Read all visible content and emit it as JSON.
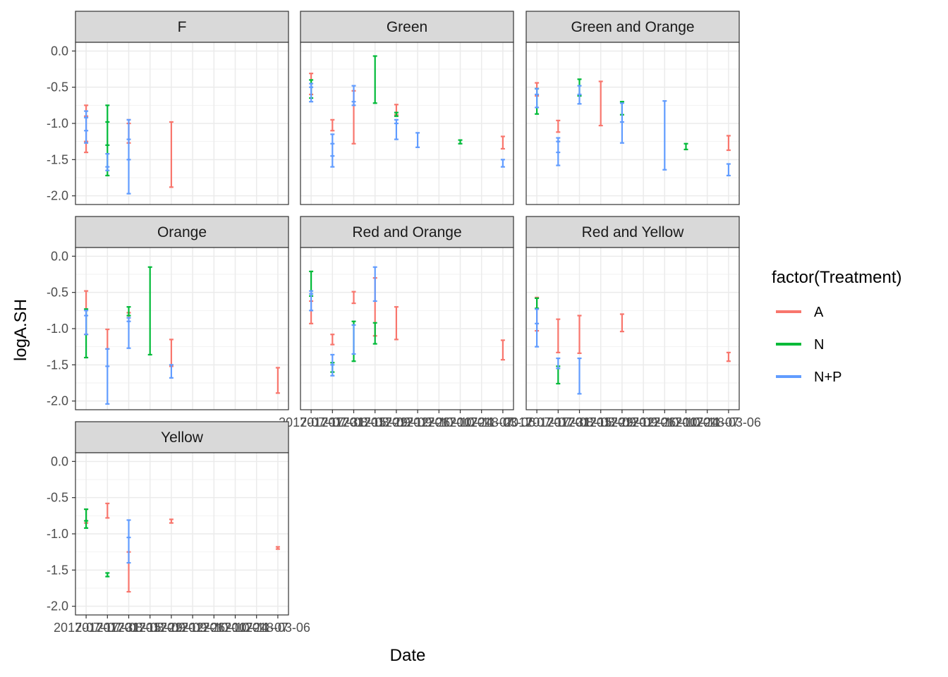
{
  "chart_data": {
    "type": "errorbar",
    "xlabel": "Date",
    "ylabel": "logA.SH",
    "ylim": [
      -2.12,
      0.12
    ],
    "y_ticks": [
      0.0,
      -0.5,
      -1.0,
      -1.5,
      -2.0
    ],
    "y_tick_labels": [
      "0.0",
      "-0.5",
      "-1.0",
      "-1.5",
      "-2.0"
    ],
    "x_categories": [
      "2017-07-17",
      "2017-07-31",
      "2017-08-15",
      "2017-08-29",
      "2017-09-12",
      "2017-09-26",
      "2017-10-10",
      "2017-10-24",
      "2017-11-07",
      "2018-03-06"
    ],
    "x_tick_labels": [
      "2017-07-17",
      "2017-07-31",
      "2017-08-15",
      "2017-08-29",
      "2017-09-12",
      "2017-09-26",
      "2017-10-10",
      "2017-10-24",
      "2017-11-07",
      "2018-03-06"
    ],
    "legend": {
      "title": "factor(Treatment)",
      "position": "right",
      "entries": [
        {
          "name": "A",
          "color": "#F8766D"
        },
        {
          "name": "N",
          "color": "#00BA38"
        },
        {
          "name": "N+P",
          "color": "#619CFF"
        }
      ]
    },
    "panels": [
      {
        "name": "F",
        "bars": [
          {
            "t": "A",
            "x": 0,
            "ymin": -1.4,
            "ymax": -0.75,
            "mids": [
              -0.9,
              -1.25
            ]
          },
          {
            "t": "N+P",
            "x": 0,
            "ymin": -1.27,
            "ymax": -0.83,
            "mids": [
              -0.92,
              -1.1
            ]
          },
          {
            "t": "N",
            "x": 1,
            "ymin": -1.72,
            "ymax": -0.75,
            "mids": [
              -0.98,
              -1.3
            ]
          },
          {
            "t": "N+P",
            "x": 1,
            "ymin": -1.65,
            "ymax": -1.42,
            "mids": [
              -1.6
            ]
          },
          {
            "t": "A",
            "x": 2,
            "ymin": -1.27,
            "ymax": -0.95,
            "mids": [
              -1.0
            ]
          },
          {
            "t": "N+P",
            "x": 2,
            "ymin": -1.97,
            "ymax": -0.95,
            "mids": [
              -1.22,
              -1.5
            ]
          },
          {
            "t": "A",
            "x": 4,
            "ymin": -1.88,
            "ymax": -0.98,
            "mids": []
          }
        ]
      },
      {
        "name": "Green",
        "bars": [
          {
            "t": "A",
            "x": 0,
            "ymin": -0.6,
            "ymax": -0.31,
            "mids": []
          },
          {
            "t": "N",
            "x": 0,
            "ymin": -0.65,
            "ymax": -0.4,
            "mids": []
          },
          {
            "t": "N+P",
            "x": 0,
            "ymin": -0.7,
            "ymax": -0.45,
            "mids": [
              -0.5
            ]
          },
          {
            "t": "A",
            "x": 1,
            "ymin": -1.1,
            "ymax": -0.95,
            "mids": []
          },
          {
            "t": "N+P",
            "x": 1,
            "ymin": -1.6,
            "ymax": -1.15,
            "mids": [
              -1.28,
              -1.45
            ]
          },
          {
            "t": "A",
            "x": 2,
            "ymin": -1.28,
            "ymax": -0.55,
            "mids": []
          },
          {
            "t": "N+P",
            "x": 2,
            "ymin": -0.75,
            "ymax": -0.48,
            "mids": [
              -0.7
            ]
          },
          {
            "t": "N",
            "x": 3,
            "ymin": -0.72,
            "ymax": -0.07,
            "mids": []
          },
          {
            "t": "A",
            "x": 4,
            "ymin": -0.88,
            "ymax": -0.74,
            "mids": []
          },
          {
            "t": "N",
            "x": 4,
            "ymin": -0.9,
            "ymax": -0.85,
            "mids": []
          },
          {
            "t": "N+P",
            "x": 4,
            "ymin": -1.22,
            "ymax": -0.95,
            "mids": [
              -1.0
            ]
          },
          {
            "t": "N+P",
            "x": 5,
            "ymin": -1.33,
            "ymax": -1.13,
            "mids": []
          },
          {
            "t": "N",
            "x": 7,
            "ymin": -1.28,
            "ymax": -1.23,
            "mids": []
          },
          {
            "t": "A",
            "x": 9,
            "ymin": -1.35,
            "ymax": -1.18,
            "mids": []
          },
          {
            "t": "N+P",
            "x": 9,
            "ymin": -1.6,
            "ymax": -1.5,
            "mids": []
          }
        ]
      },
      {
        "name": "Green and Orange",
        "bars": [
          {
            "t": "A",
            "x": 0,
            "ymin": -0.62,
            "ymax": -0.44,
            "mids": []
          },
          {
            "t": "N",
            "x": 0,
            "ymin": -0.87,
            "ymax": -0.52,
            "mids": []
          },
          {
            "t": "N+P",
            "x": 0,
            "ymin": -0.78,
            "ymax": -0.52,
            "mids": [
              -0.6
            ]
          },
          {
            "t": "A",
            "x": 1,
            "ymin": -1.12,
            "ymax": -0.96,
            "mids": []
          },
          {
            "t": "N+P",
            "x": 1,
            "ymin": -1.58,
            "ymax": -1.2,
            "mids": [
              -1.25,
              -1.4
            ]
          },
          {
            "t": "N",
            "x": 2,
            "ymin": -0.62,
            "ymax": -0.39,
            "mids": []
          },
          {
            "t": "N+P",
            "x": 2,
            "ymin": -0.73,
            "ymax": -0.48,
            "mids": [
              -0.6
            ]
          },
          {
            "t": "A",
            "x": 3,
            "ymin": -1.03,
            "ymax": -0.42,
            "mids": []
          },
          {
            "t": "N",
            "x": 4,
            "ymin": -0.88,
            "ymax": -0.7,
            "mids": []
          },
          {
            "t": "N+P",
            "x": 4,
            "ymin": -1.27,
            "ymax": -0.72,
            "mids": [
              -0.98
            ]
          },
          {
            "t": "N+P",
            "x": 6,
            "ymin": -1.64,
            "ymax": -0.69,
            "mids": []
          },
          {
            "t": "N",
            "x": 7,
            "ymin": -1.36,
            "ymax": -1.28,
            "mids": []
          },
          {
            "t": "A",
            "x": 9,
            "ymin": -1.37,
            "ymax": -1.17,
            "mids": []
          },
          {
            "t": "N+P",
            "x": 9,
            "ymin": -1.72,
            "ymax": -1.56,
            "mids": []
          }
        ]
      },
      {
        "name": "Orange",
        "bars": [
          {
            "t": "A",
            "x": 0,
            "ymin": -1.08,
            "ymax": -0.48,
            "mids": []
          },
          {
            "t": "N",
            "x": 0,
            "ymin": -1.4,
            "ymax": -0.73,
            "mids": []
          },
          {
            "t": "N+P",
            "x": 0,
            "ymin": -1.08,
            "ymax": -0.75,
            "mids": [
              -0.82
            ]
          },
          {
            "t": "A",
            "x": 1,
            "ymin": -1.28,
            "ymax": -1.01,
            "mids": []
          },
          {
            "t": "N+P",
            "x": 1,
            "ymin": -2.04,
            "ymax": -1.28,
            "mids": [
              -1.52
            ]
          },
          {
            "t": "A",
            "x": 2,
            "ymin": -0.85,
            "ymax": -0.78,
            "mids": []
          },
          {
            "t": "N",
            "x": 2,
            "ymin": -0.82,
            "ymax": -0.7,
            "mids": []
          },
          {
            "t": "N+P",
            "x": 2,
            "ymin": -1.27,
            "ymax": -0.85,
            "mids": [
              -0.9
            ]
          },
          {
            "t": "N",
            "x": 3,
            "ymin": -1.36,
            "ymax": -0.15,
            "mids": []
          },
          {
            "t": "A",
            "x": 4,
            "ymin": -1.52,
            "ymax": -1.15,
            "mids": []
          },
          {
            "t": "N+P",
            "x": 4,
            "ymin": -1.68,
            "ymax": -1.5,
            "mids": []
          },
          {
            "t": "A",
            "x": 9,
            "ymin": -1.89,
            "ymax": -1.54,
            "mids": []
          }
        ]
      },
      {
        "name": "Red and Orange",
        "bars": [
          {
            "t": "A",
            "x": 0,
            "ymin": -0.93,
            "ymax": -0.62,
            "mids": []
          },
          {
            "t": "N",
            "x": 0,
            "ymin": -0.55,
            "ymax": -0.21,
            "mids": []
          },
          {
            "t": "N+P",
            "x": 0,
            "ymin": -0.75,
            "ymax": -0.48,
            "mids": [
              -0.52
            ]
          },
          {
            "t": "A",
            "x": 1,
            "ymin": -1.22,
            "ymax": -1.08,
            "mids": []
          },
          {
            "t": "N",
            "x": 1,
            "ymin": -1.6,
            "ymax": -1.47,
            "mids": []
          },
          {
            "t": "N+P",
            "x": 1,
            "ymin": -1.65,
            "ymax": -1.36,
            "mids": [
              -1.5
            ]
          },
          {
            "t": "A",
            "x": 2,
            "ymin": -0.65,
            "ymax": -0.49,
            "mids": []
          },
          {
            "t": "N",
            "x": 2,
            "ymin": -1.45,
            "ymax": -0.9,
            "mids": []
          },
          {
            "t": "N+P",
            "x": 2,
            "ymin": -1.35,
            "ymax": -0.95,
            "mids": []
          },
          {
            "t": "A",
            "x": 3,
            "ymin": -1.1,
            "ymax": -0.3,
            "mids": []
          },
          {
            "t": "N",
            "x": 3,
            "ymin": -1.21,
            "ymax": -0.92,
            "mids": []
          },
          {
            "t": "N+P",
            "x": 3,
            "ymin": -0.62,
            "ymax": -0.15,
            "mids": []
          },
          {
            "t": "A",
            "x": 4,
            "ymin": -1.15,
            "ymax": -0.7,
            "mids": []
          },
          {
            "t": "A",
            "x": 9,
            "ymin": -1.43,
            "ymax": -1.16,
            "mids": []
          }
        ]
      },
      {
        "name": "Red and Yellow",
        "bars": [
          {
            "t": "A",
            "x": 0,
            "ymin": -1.03,
            "ymax": -0.57,
            "mids": []
          },
          {
            "t": "N",
            "x": 0,
            "ymin": -0.72,
            "ymax": -0.58,
            "mids": []
          },
          {
            "t": "N+P",
            "x": 0,
            "ymin": -1.25,
            "ymax": -0.73,
            "mids": [
              -0.93
            ]
          },
          {
            "t": "A",
            "x": 1,
            "ymin": -1.33,
            "ymax": -0.87,
            "mids": []
          },
          {
            "t": "N",
            "x": 1,
            "ymin": -1.76,
            "ymax": -1.52,
            "mids": []
          },
          {
            "t": "N+P",
            "x": 1,
            "ymin": -1.55,
            "ymax": -1.41,
            "mids": []
          },
          {
            "t": "A",
            "x": 2,
            "ymin": -1.34,
            "ymax": -0.82,
            "mids": []
          },
          {
            "t": "N+P",
            "x": 2,
            "ymin": -1.9,
            "ymax": -1.41,
            "mids": []
          },
          {
            "t": "A",
            "x": 4,
            "ymin": -1.04,
            "ymax": -0.8,
            "mids": []
          },
          {
            "t": "A",
            "x": 9,
            "ymin": -1.45,
            "ymax": -1.33,
            "mids": []
          }
        ]
      },
      {
        "name": "Yellow",
        "bars": [
          {
            "t": "A",
            "x": 0,
            "ymin": -0.85,
            "ymax": -0.66,
            "mids": []
          },
          {
            "t": "N",
            "x": 0,
            "ymin": -0.92,
            "ymax": -0.66,
            "mids": [
              -0.82
            ]
          },
          {
            "t": "A",
            "x": 1,
            "ymin": -0.78,
            "ymax": -0.58,
            "mids": []
          },
          {
            "t": "N",
            "x": 1,
            "ymin": -1.59,
            "ymax": -1.54,
            "mids": []
          },
          {
            "t": "A",
            "x": 2,
            "ymin": -1.8,
            "ymax": -1.25,
            "mids": []
          },
          {
            "t": "N+P",
            "x": 2,
            "ymin": -1.4,
            "ymax": -0.81,
            "mids": [
              -1.05
            ]
          },
          {
            "t": "A",
            "x": 4,
            "ymin": -0.85,
            "ymax": -0.8,
            "mids": []
          },
          {
            "t": "A",
            "x": 9,
            "ymin": -1.21,
            "ymax": -1.18,
            "mids": []
          }
        ]
      }
    ]
  }
}
